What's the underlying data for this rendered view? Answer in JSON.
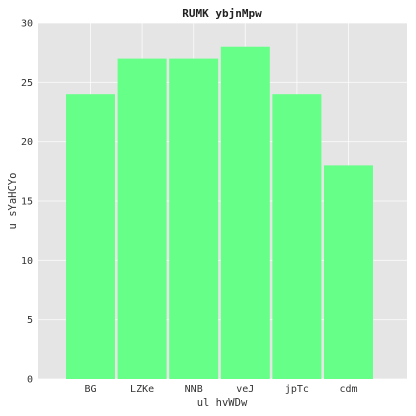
{
  "chart_data": {
    "type": "bar",
    "title": "RUMK ybjnMpw",
    "xlabel": "ul hvWDw",
    "ylabel": "u sYaHCYo",
    "categories": [
      "BG",
      "LZKe",
      "NNB",
      "veJ",
      "jpTc",
      "cdm"
    ],
    "values": [
      24,
      27,
      27,
      28,
      24,
      18
    ],
    "ylim": [
      0,
      30
    ],
    "yticks": [
      0,
      5,
      10,
      15,
      20,
      25,
      30
    ],
    "grid": true,
    "bar_color": "#66ff88",
    "background_color": "#e5e5e5"
  }
}
